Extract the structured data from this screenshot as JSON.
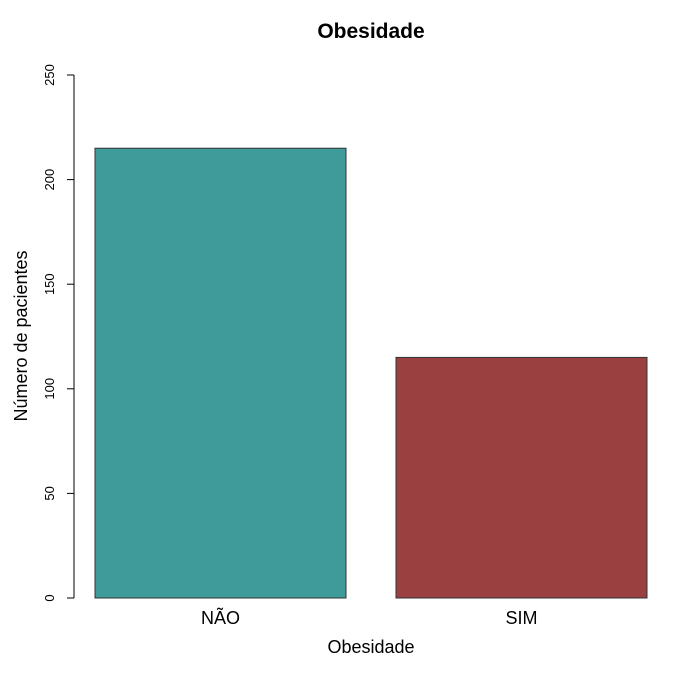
{
  "chart_data": {
    "type": "bar",
    "title": "Obesidade",
    "xlabel": "Obesidade",
    "ylabel": "Número de pacientes",
    "categories": [
      "NÃO",
      "SIM"
    ],
    "values": [
      215,
      115
    ],
    "colors": [
      "#3f9a9a",
      "#9a4040"
    ],
    "ylim": [
      0,
      250
    ],
    "yticks": [
      0,
      50,
      100,
      150,
      200,
      250
    ],
    "grid": false,
    "legend": "none"
  }
}
